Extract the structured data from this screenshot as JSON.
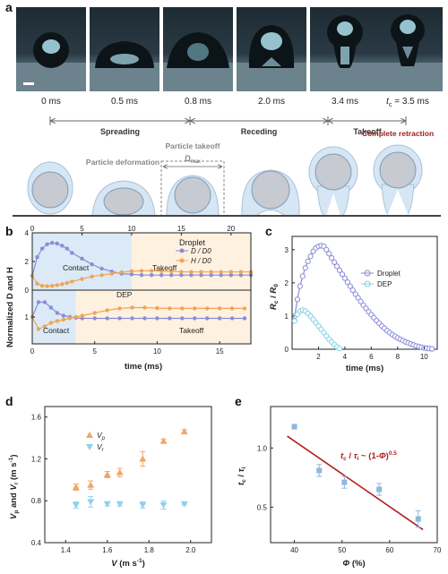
{
  "panels": {
    "a": "a",
    "b": "b",
    "c": "c",
    "d": "d",
    "e": "e"
  },
  "panel_a": {
    "time_labels": [
      "0 ms",
      "0.5 ms",
      "0.8 ms",
      "2.0 ms",
      "3.4 ms"
    ],
    "tc_symbol": "t",
    "tc_sub": "c",
    "tc_value": " = 3.5 ms",
    "phases": [
      "Spreading",
      "Receding",
      "Takeoff"
    ],
    "complete_retraction": "Complete retraction",
    "particle_takeoff": "Particle takeoff",
    "particle_deformation": "Particle deformation",
    "dmax": "D",
    "dmax_sub": "max",
    "colors": {
      "retraction": "#9b1c1c",
      "droplet_fill": "#d6e6f4",
      "particle_fill": "#c7cad0",
      "particle_edge": "#7f9cb8"
    }
  },
  "chart_data": [
    {
      "panel": "b",
      "type": "line",
      "ylabel": "Normalized D and H",
      "xlabel": "time (ms)",
      "top": {
        "region_label": "Droplet",
        "contact_label": "Contact",
        "takeoff_label": "Takeoff",
        "xlim": [
          0,
          22
        ],
        "ylim": [
          0,
          4
        ],
        "xticks": [
          0,
          5,
          10,
          15,
          20
        ],
        "yticks": [
          0,
          2,
          4
        ],
        "legend": [
          "D / D0",
          "H / D0"
        ],
        "series": [
          {
            "name": "D / D0",
            "color": "#8a8cd8",
            "x": [
              0,
              0.5,
              1,
              1.5,
              2,
              2.5,
              3,
              3.5,
              4,
              5,
              6,
              7,
              8,
              9,
              10,
              11,
              12,
              13,
              14,
              15,
              16,
              17,
              18,
              19,
              20,
              21,
              22
            ],
            "y": [
              1,
              2.3,
              2.9,
              3.2,
              3.3,
              3.25,
              3.1,
              2.9,
              2.6,
              2.2,
              1.8,
              1.5,
              1.3,
              1.15,
              1.1,
              1.05,
              1.05,
              1.05,
              1.05,
              1.05,
              1.05,
              1.05,
              1.05,
              1.05,
              1.05,
              1.05,
              1.05
            ]
          },
          {
            "name": "H / D0",
            "color": "#f0a556",
            "x": [
              0,
              0.5,
              1,
              1.5,
              2,
              2.5,
              3,
              3.5,
              4,
              5,
              6,
              7,
              8,
              9,
              10,
              11,
              12,
              13,
              14,
              15,
              16,
              17,
              18,
              19,
              20,
              21,
              22
            ],
            "y": [
              1,
              0.45,
              0.3,
              0.28,
              0.3,
              0.35,
              0.42,
              0.5,
              0.6,
              0.78,
              0.95,
              1.05,
              1.15,
              1.25,
              1.32,
              1.35,
              1.35,
              1.33,
              1.3,
              1.28,
              1.27,
              1.27,
              1.27,
              1.27,
              1.27,
              1.27,
              1.27
            ]
          }
        ]
      },
      "bottom": {
        "region_label": "DEP",
        "contact_label": "Contact",
        "takeoff_label": "Takeoff",
        "xlim": [
          0,
          17.5
        ],
        "ylim": [
          0,
          2
        ],
        "xticks": [
          0,
          5,
          10,
          15
        ],
        "yticks": [
          1
        ],
        "series": [
          {
            "name": "D / D0",
            "color": "#8a8cd8",
            "x": [
              0,
              0.5,
              1,
              1.5,
              2,
              2.5,
              3,
              3.5,
              4,
              5,
              6,
              7,
              8,
              9,
              10,
              11,
              12,
              13,
              14,
              15,
              16,
              17
            ],
            "y": [
              1,
              1.55,
              1.55,
              1.35,
              1.15,
              1.05,
              1.0,
              0.97,
              0.95,
              0.95,
              0.95,
              0.95,
              0.95,
              0.95,
              0.95,
              0.95,
              0.95,
              0.95,
              0.95,
              0.95,
              0.95,
              0.95
            ]
          },
          {
            "name": "H / D0",
            "color": "#f0a556",
            "x": [
              0,
              0.5,
              1,
              1.5,
              2,
              2.5,
              3,
              3.5,
              4,
              5,
              6,
              7,
              8,
              9,
              10,
              11,
              12,
              13,
              14,
              15,
              16,
              17
            ],
            "y": [
              1,
              0.55,
              0.65,
              0.78,
              0.85,
              0.9,
              0.95,
              1.0,
              1.05,
              1.15,
              1.25,
              1.32,
              1.35,
              1.35,
              1.33,
              1.32,
              1.32,
              1.32,
              1.32,
              1.32,
              1.32,
              1.32
            ]
          }
        ]
      }
    },
    {
      "panel": "c",
      "type": "scatter",
      "ylabel_main": "R",
      "ylabel_sub1": "c",
      "ylabel_div": " / ",
      "ylabel_sub2": "0",
      "xlabel": "time (ms)",
      "xlim": [
        0,
        11
      ],
      "ylim": [
        0,
        3.4
      ],
      "xticks": [
        2,
        4,
        6,
        8,
        10
      ],
      "yticks": [
        0,
        1,
        2,
        3
      ],
      "series": [
        {
          "name": "Droplet",
          "color": "#8a8cd8",
          "x": [
            0.2,
            0.4,
            0.6,
            0.8,
            1.0,
            1.2,
            1.4,
            1.6,
            1.8,
            2.0,
            2.2,
            2.4,
            2.6,
            2.8,
            3.0,
            3.2,
            3.4,
            3.6,
            3.8,
            4.0,
            4.2,
            4.4,
            4.6,
            4.8,
            5.0,
            5.2,
            5.4,
            5.6,
            5.8,
            6.0,
            6.2,
            6.4,
            6.6,
            6.8,
            7.0,
            7.2,
            7.4,
            7.6,
            7.8,
            8.0,
            8.2,
            8.4,
            8.6,
            8.8,
            9.0,
            9.2,
            9.4,
            9.6,
            9.8,
            10.0,
            10.2,
            10.4,
            10.6
          ],
          "y": [
            1.0,
            1.5,
            1.9,
            2.2,
            2.45,
            2.65,
            2.8,
            2.95,
            3.05,
            3.1,
            3.12,
            3.1,
            3.0,
            2.88,
            2.75,
            2.62,
            2.5,
            2.38,
            2.26,
            2.14,
            2.02,
            1.9,
            1.78,
            1.66,
            1.55,
            1.44,
            1.33,
            1.23,
            1.13,
            1.04,
            0.95,
            0.86,
            0.78,
            0.7,
            0.63,
            0.56,
            0.5,
            0.44,
            0.39,
            0.34,
            0.3,
            0.26,
            0.22,
            0.19,
            0.16,
            0.13,
            0.1,
            0.08,
            0.06,
            0.04,
            0.03,
            0.02,
            0.01
          ]
        },
        {
          "name": "DEP",
          "color": "#7fd3e6",
          "x": [
            0.2,
            0.4,
            0.6,
            0.8,
            1.0,
            1.2,
            1.4,
            1.6,
            1.8,
            2.0,
            2.2,
            2.4,
            2.6,
            2.8,
            3.0,
            3.2,
            3.4,
            3.6
          ],
          "y": [
            0.85,
            1.05,
            1.15,
            1.18,
            1.15,
            1.08,
            1.0,
            0.9,
            0.8,
            0.7,
            0.6,
            0.5,
            0.4,
            0.3,
            0.22,
            0.14,
            0.07,
            0.02
          ]
        }
      ]
    },
    {
      "panel": "d",
      "type": "scatter",
      "ylabel": "V",
      "xlabel": "V (m s-1)",
      "ylabel_parts": {
        "v": "V",
        "p": "p",
        "and": " and ",
        "r": "r",
        "unit": " (m s",
        "exp": "-1",
        "close": ")"
      },
      "xlabel_parts": {
        "v": "V",
        "unit": " (m s",
        "exp": "-1",
        "close": ")"
      },
      "xlim": [
        1.3,
        2.1
      ],
      "ylim": [
        0.4,
        1.7
      ],
      "xticks": [
        1.4,
        1.6,
        1.8,
        2.0
      ],
      "yticks": [
        0.4,
        0.8,
        1.2,
        1.6
      ],
      "series": [
        {
          "name": "Vp",
          "legend_main": "V",
          "legend_sub": "p",
          "marker": "triangle-up",
          "color": "#f2a667",
          "x": [
            1.45,
            1.52,
            1.6,
            1.66,
            1.77,
            1.87,
            1.97
          ],
          "y": [
            0.93,
            0.95,
            1.05,
            1.07,
            1.2,
            1.37,
            1.46
          ],
          "err": [
            0.03,
            0.04,
            0.03,
            0.04,
            0.07,
            0.02,
            0.02
          ]
        },
        {
          "name": "Vr",
          "legend_main": "V",
          "legend_sub": "r",
          "marker": "triangle-down",
          "color": "#8fd1ec",
          "x": [
            1.45,
            1.52,
            1.6,
            1.66,
            1.77,
            1.87,
            1.97
          ],
          "y": [
            0.76,
            0.79,
            0.77,
            0.77,
            0.76,
            0.76,
            0.77
          ],
          "err": [
            0.03,
            0.05,
            0.02,
            0.02,
            0.03,
            0.04,
            0.01
          ]
        }
      ]
    },
    {
      "panel": "e",
      "type": "scatter",
      "ylabel_parts": {
        "t": "t",
        "c": "c",
        "div": " / ",
        "tau": "τ",
        "i": "i"
      },
      "xlabel_parts": {
        "phi": "Φ",
        "unit": " (%)"
      },
      "xlim": [
        35,
        70
      ],
      "ylim": [
        0.2,
        1.35
      ],
      "xticks": [
        40,
        50,
        60,
        70
      ],
      "yticks": [
        0.5,
        1.0
      ],
      "annotation_parts": {
        "t": "t",
        "c": "c",
        "div": " / ",
        "tau": "τ",
        "i": "i",
        "sim": " ~ (1-",
        "phi": "Φ",
        "close": ")",
        "exp": "0.5"
      },
      "series": [
        {
          "name": "data",
          "marker": "square",
          "color": "#8fb8de",
          "x": [
            40,
            45.2,
            50.5,
            57.8,
            66
          ],
          "y": [
            1.18,
            0.81,
            0.71,
            0.65,
            0.4
          ],
          "err": [
            0.02,
            0.05,
            0.05,
            0.05,
            0.07
          ]
        }
      ],
      "fit": {
        "color": "#b11e1e",
        "x": [
          38.5,
          67
        ],
        "y": [
          1.1,
          0.31
        ]
      }
    }
  ]
}
